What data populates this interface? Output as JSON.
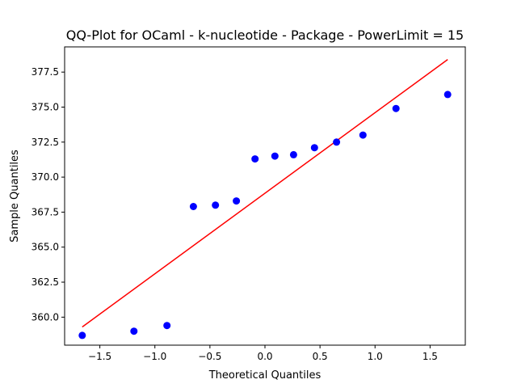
{
  "chart_data": {
    "type": "scatter",
    "title": "QQ-Plot for OCaml - k-nucleotide - Package - PowerLimit = 15",
    "xlabel": "Theoretical Quantiles",
    "ylabel": "Sample Quantiles",
    "xlim": [
      -1.82,
      1.82
    ],
    "ylim": [
      358.0,
      379.3
    ],
    "xticks": [
      -1.5,
      -1.0,
      -0.5,
      0.0,
      0.5,
      1.0,
      1.5
    ],
    "xtick_labels": [
      "−1.5",
      "−1.0",
      "−0.5",
      "0.0",
      "0.5",
      "1.0",
      "1.5"
    ],
    "yticks": [
      360.0,
      362.5,
      365.0,
      367.5,
      370.0,
      372.5,
      375.0,
      377.5
    ],
    "ytick_labels": [
      "360.0",
      "362.5",
      "365.0",
      "367.5",
      "370.0",
      "372.5",
      "375.0",
      "377.5"
    ],
    "grid": false,
    "series": [
      {
        "type": "scatter",
        "color": "#0000ff",
        "x": [
          -1.66,
          -1.19,
          -0.89,
          -0.65,
          -0.45,
          -0.26,
          -0.09,
          0.09,
          0.26,
          0.45,
          0.65,
          0.89,
          1.19,
          1.66
        ],
        "y": [
          358.7,
          359.0,
          359.4,
          367.9,
          368.0,
          368.3,
          371.3,
          371.5,
          371.6,
          372.1,
          372.5,
          373.0,
          374.9,
          375.9
        ]
      },
      {
        "type": "line",
        "color": "#ff0000",
        "x": [
          -1.66,
          1.66
        ],
        "y": [
          359.3,
          378.4
        ]
      }
    ]
  }
}
